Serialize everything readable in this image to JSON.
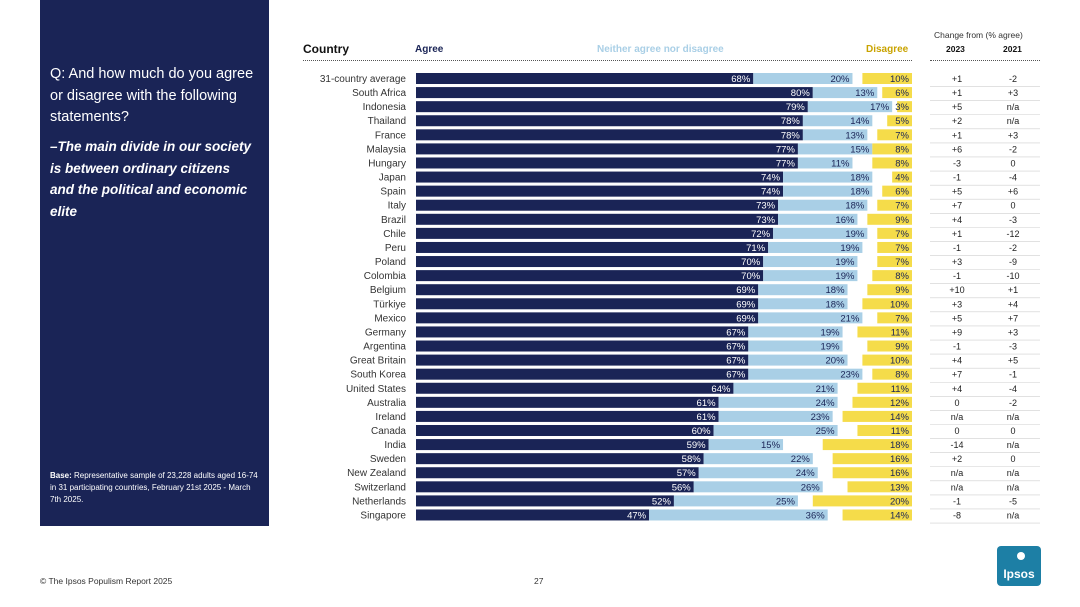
{
  "panel": {
    "question": "Q: And how much do you agree or disagree with the following statements?",
    "statement": "–The main divide in our society is between ordinary citizens and the political and economic elite",
    "base_label": "Base:",
    "base_text": "Representative sample of 23,228 adults aged 16-74 in 31 participating countries, February 21st 2025 - March 7th 2025."
  },
  "header": {
    "country": "Country",
    "agree": "Agree",
    "neither": "Neither agree nor disagree",
    "disagree": "Disagree",
    "change_from": "Change from (% agree)",
    "col_2023": "2023",
    "col_2021": "2021"
  },
  "footer": {
    "source": "© The Ipsos Populism Report 2025",
    "page": "27"
  },
  "logo": {
    "text": "Ipsos"
  },
  "colors": {
    "agree": "#1a2456",
    "neither": "#a9cfe6",
    "disagree": "#f5dc4a",
    "panel": "#1a2456"
  },
  "chart_data": {
    "type": "bar",
    "stacked": true,
    "orientation": "horizontal",
    "categories": [
      "31-country average",
      "South Africa",
      "Indonesia",
      "Thailand",
      "France",
      "Malaysia",
      "Hungary",
      "Japan",
      "Spain",
      "Italy",
      "Brazil",
      "Chile",
      "Peru",
      "Poland",
      "Colombia",
      "Belgium",
      "Türkiye",
      "Mexico",
      "Germany",
      "Argentina",
      "Great Britain",
      "South Korea",
      "United States",
      "Australia",
      "Ireland",
      "Canada",
      "India",
      "Sweden",
      "New Zealand",
      "Switzerland",
      "Netherlands",
      "Singapore"
    ],
    "series": [
      {
        "name": "Agree",
        "values": [
          68,
          80,
          79,
          78,
          78,
          77,
          77,
          74,
          74,
          73,
          73,
          72,
          71,
          70,
          70,
          69,
          69,
          69,
          67,
          67,
          67,
          67,
          64,
          61,
          61,
          60,
          59,
          58,
          57,
          56,
          52,
          47
        ]
      },
      {
        "name": "Neither agree nor disagree",
        "values": [
          20,
          13,
          17,
          14,
          13,
          15,
          11,
          18,
          18,
          18,
          16,
          19,
          19,
          19,
          19,
          18,
          18,
          21,
          19,
          19,
          20,
          23,
          21,
          24,
          23,
          25,
          15,
          22,
          24,
          26,
          25,
          36
        ]
      },
      {
        "name": "Disagree",
        "values": [
          10,
          6,
          3,
          5,
          7,
          8,
          8,
          4,
          6,
          7,
          9,
          7,
          7,
          7,
          8,
          9,
          10,
          7,
          11,
          9,
          10,
          8,
          11,
          12,
          14,
          11,
          18,
          16,
          16,
          13,
          20,
          14
        ]
      }
    ],
    "value_suffix": "%",
    "xlim": [
      0,
      100
    ],
    "change_2023": [
      "+1",
      "+1",
      "+5",
      "+2",
      "+1",
      "+6",
      "-3",
      "-1",
      "+5",
      "+7",
      "+4",
      "+1",
      "-1",
      "+3",
      "-1",
      "+10",
      "+3",
      "+5",
      "+9",
      "-1",
      "+4",
      "+7",
      "+4",
      "0",
      "n/a",
      "0",
      "-14",
      "+2",
      "n/a",
      "n/a",
      "-1",
      "-8"
    ],
    "change_2021": [
      "-2",
      "+3",
      "n/a",
      "n/a",
      "+3",
      "-2",
      "0",
      "-4",
      "+6",
      "0",
      "-3",
      "-12",
      "-2",
      "-9",
      "-10",
      "+1",
      "+4",
      "+7",
      "+3",
      "-3",
      "+5",
      "-1",
      "-4",
      "-2",
      "n/a",
      "0",
      "n/a",
      "0",
      "n/a",
      "n/a",
      "-5",
      "n/a"
    ]
  }
}
